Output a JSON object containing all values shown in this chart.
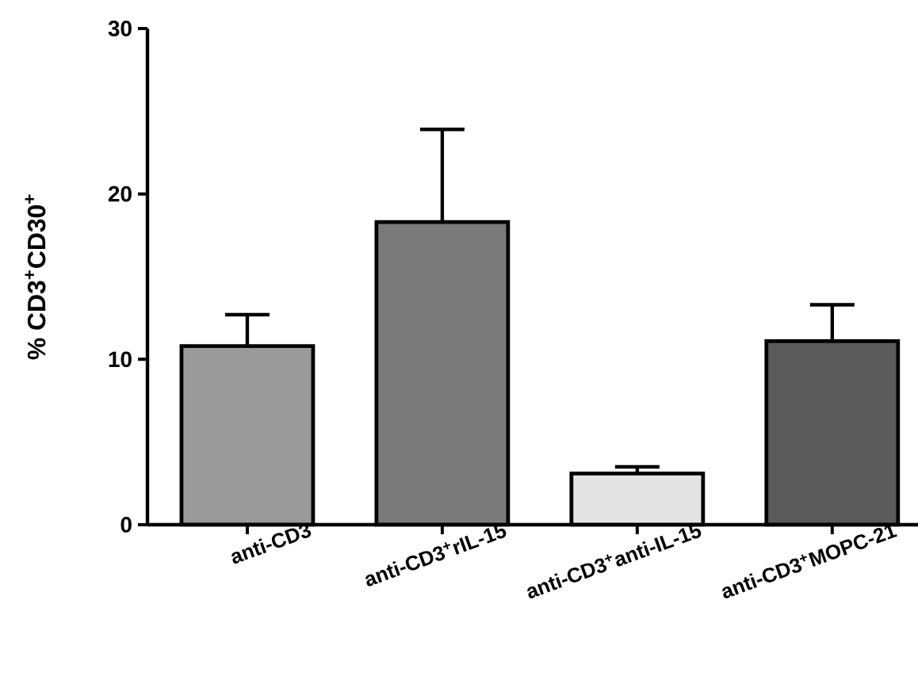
{
  "chart_data": {
    "type": "bar",
    "ylabel": "% CD3$^{+}$CD30$^{+}$",
    "categories": [
      "anti-CD3",
      "anti-CD3$^{+}$rIL-15",
      "anti-CD3$^{+}$anti-IL-15",
      "anti-CD3$^{+}$MOPC-21"
    ],
    "values": [
      10.8,
      18.3,
      3.1,
      11.1
    ],
    "errors": [
      [
        10.8,
        12.7
      ],
      [
        18.3,
        23.9
      ],
      [
        3.1,
        3.5
      ],
      [
        11.1,
        13.3
      ]
    ],
    "colors": [
      "#9a9a9a",
      "#7a7a7a",
      "#e4e4e4",
      "#5a5a5a"
    ],
    "ylim": [
      0,
      30
    ],
    "yticks": [
      0,
      10,
      20,
      30
    ],
    "grid": false
  }
}
